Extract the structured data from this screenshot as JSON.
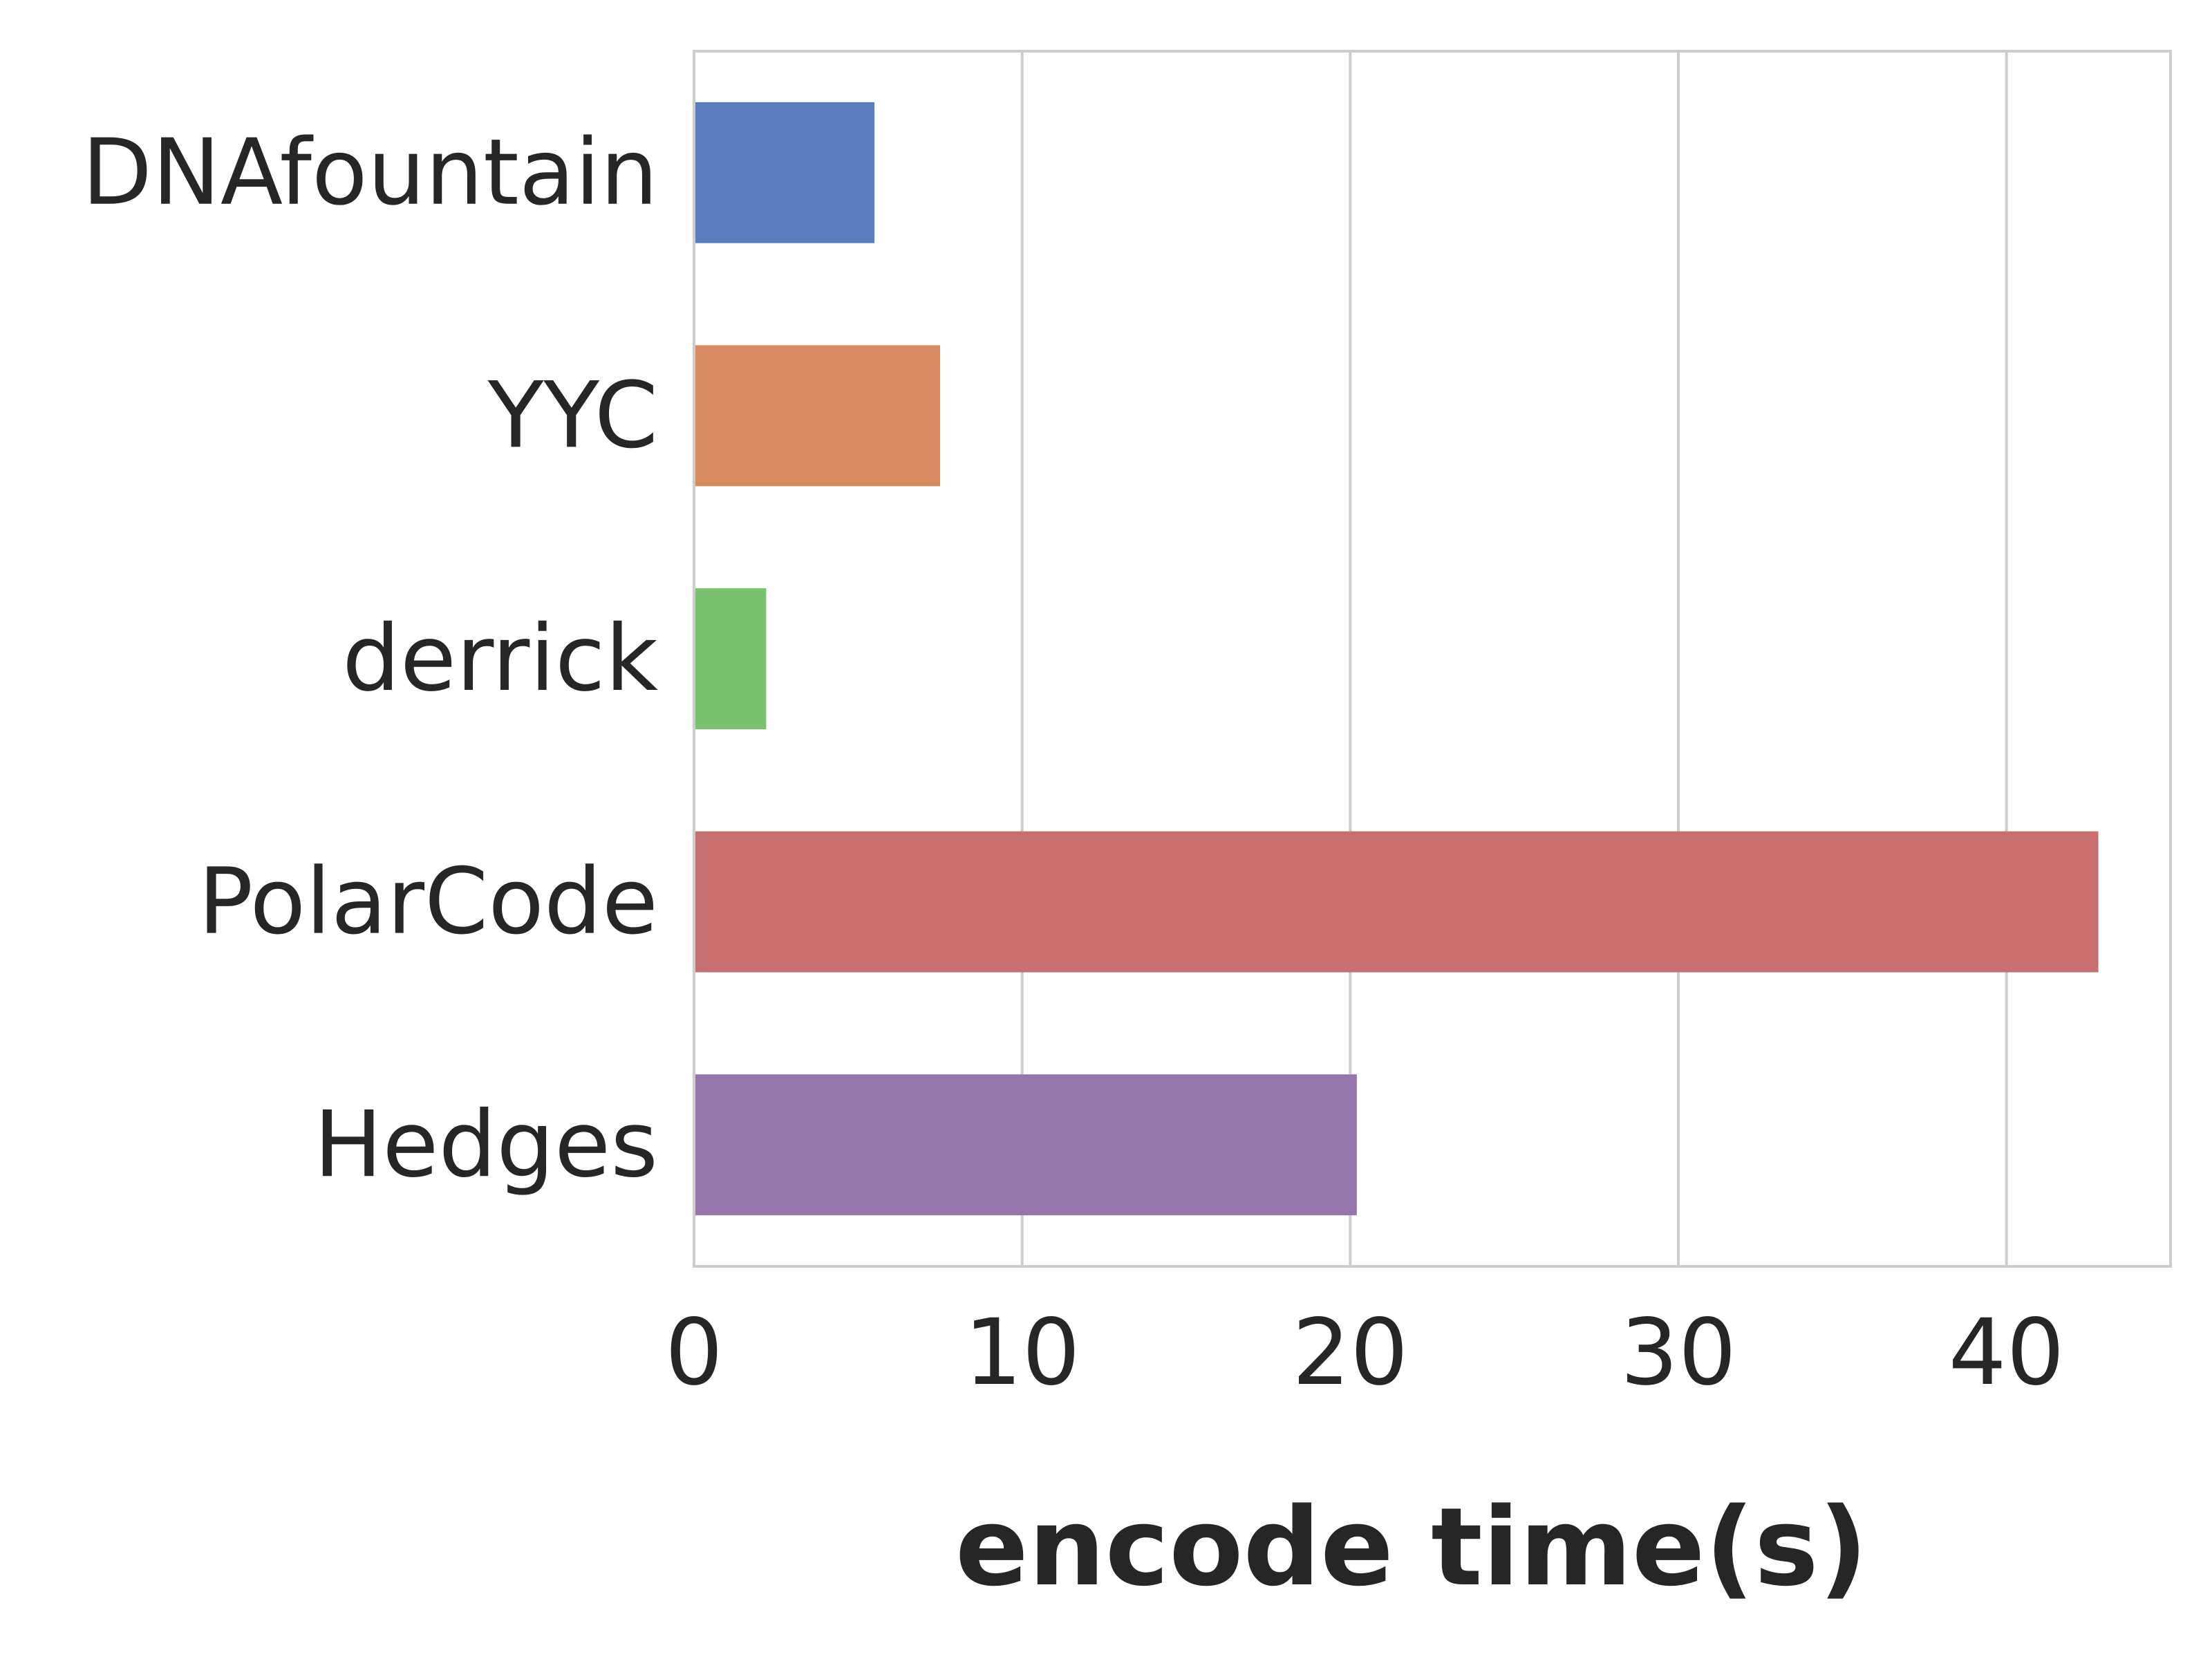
{
  "chart_data": {
    "type": "bar",
    "orientation": "horizontal",
    "categories": [
      "DNAfountain",
      "YYC",
      "derrick",
      "PolarCode",
      "Hedges"
    ],
    "values": [
      5.5,
      7.5,
      2.2,
      42.8,
      20.2
    ],
    "colors": [
      "#5a7dbd",
      "#d98b5f",
      "#78c16e",
      "#c76f6f",
      "#9476ab"
    ],
    "xlabel": "encode time(s)",
    "ylabel": "",
    "title": "",
    "xlim": [
      0,
      45
    ],
    "xticks": [
      0,
      10,
      20,
      30,
      40
    ],
    "xtick_labels": [
      "0",
      "10",
      "20",
      "30",
      "40"
    ],
    "grid": "vertical",
    "legend": "none",
    "grid_color": "#cccccc",
    "frame_color": "#cccccc"
  }
}
